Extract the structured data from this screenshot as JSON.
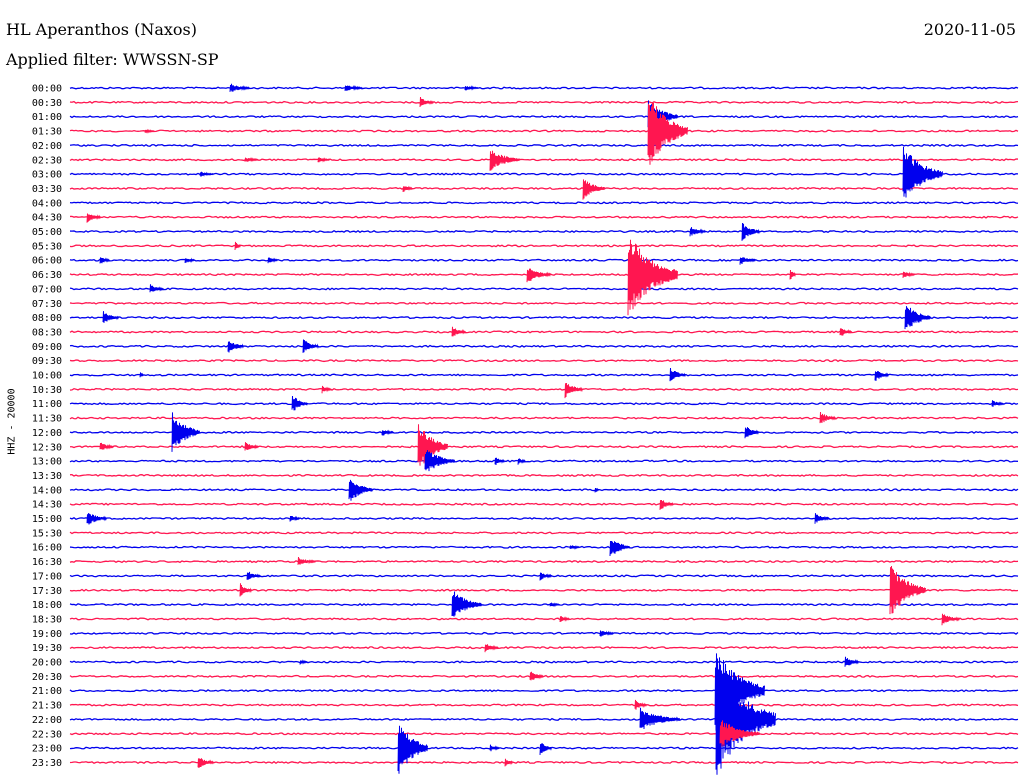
{
  "header": {
    "station": "HL Aperanthos (Naxos)",
    "date": "2020-11-05",
    "filter": "Applied filter: WWSSN-SP"
  },
  "channel_label": "HHZ - 20000",
  "colors": {
    "trace_a": "#0000ee",
    "trace_b": "#ff1650"
  },
  "time_labels": [
    "00:00",
    "00:30",
    "01:00",
    "01:30",
    "02:00",
    "02:30",
    "03:00",
    "03:30",
    "04:00",
    "04:30",
    "05:00",
    "05:30",
    "06:00",
    "06:30",
    "07:00",
    "07:30",
    "08:00",
    "08:30",
    "09:00",
    "09:30",
    "10:00",
    "10:30",
    "11:00",
    "11:30",
    "12:00",
    "12:30",
    "13:00",
    "13:30",
    "14:00",
    "14:30",
    "15:00",
    "15:30",
    "16:00",
    "16:30",
    "17:00",
    "17:30",
    "18:00",
    "18:30",
    "19:00",
    "19:30",
    "20:00",
    "20:30",
    "21:00",
    "21:30",
    "22:00",
    "22:30",
    "23:00",
    "23:30"
  ]
}
